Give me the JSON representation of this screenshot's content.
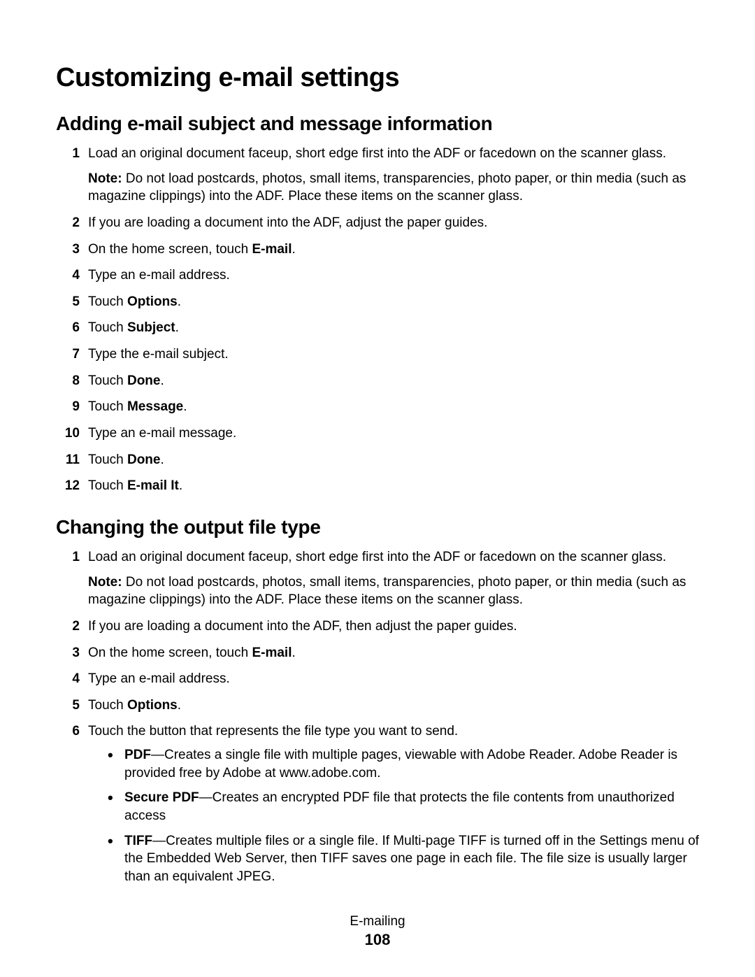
{
  "title": "Customizing e-mail settings",
  "section1": {
    "heading": "Adding e-mail subject and message information",
    "step1": "Load an original document faceup, short edge first into the ADF or facedown on the scanner glass.",
    "note_label": "Note:",
    "note_text": " Do not load postcards, photos, small items, transparencies, photo paper, or thin media (such as magazine clippings) into the ADF. Place these items on the scanner glass.",
    "step2": "If you are loading a document into the ADF, adjust the paper guides.",
    "step3_pre": "On the home screen, touch ",
    "step3_bold": "E-mail",
    "step3_post": ".",
    "step4": "Type an e-mail address.",
    "step5_pre": "Touch ",
    "step5_bold": "Options",
    "step5_post": ".",
    "step6_pre": "Touch ",
    "step6_bold": "Subject",
    "step6_post": ".",
    "step7": "Type the e-mail subject.",
    "step8_pre": "Touch ",
    "step8_bold": "Done",
    "step8_post": ".",
    "step9_pre": "Touch ",
    "step9_bold": "Message",
    "step9_post": ".",
    "step10": "Type an e-mail message.",
    "step11_pre": "Touch ",
    "step11_bold": "Done",
    "step11_post": ".",
    "step12_pre": "Touch ",
    "step12_bold": "E-mail It",
    "step12_post": "."
  },
  "section2": {
    "heading": "Changing the output file type",
    "step1": "Load an original document faceup, short edge first into the ADF or facedown on the scanner glass.",
    "note_label": "Note:",
    "note_text": " Do not load postcards, photos, small items, transparencies, photo paper, or thin media (such as magazine clippings) into the ADF. Place these items on the scanner glass.",
    "step2": "If you are loading a document into the ADF, then adjust the paper guides.",
    "step3_pre": "On the home screen, touch ",
    "step3_bold": "E-mail",
    "step3_post": ".",
    "step4": "Type an e-mail address.",
    "step5_pre": "Touch ",
    "step5_bold": "Options",
    "step5_post": ".",
    "step6": "Touch the button that represents the file type you want to send.",
    "bullet1_bold": "PDF",
    "bullet1_text": "—Creates a single file with multiple pages, viewable with Adobe Reader. Adobe Reader is provided free by Adobe at www.adobe.com.",
    "bullet2_bold": "Secure PDF",
    "bullet2_text": "—Creates an encrypted PDF file that protects the file contents from unauthorized access",
    "bullet3_bold": "TIFF",
    "bullet3_text": "—Creates multiple files or a single file. If Multi-page TIFF is turned off in the Settings menu of the Embedded Web Server, then TIFF saves one page in each file. The file size is usually larger than an equivalent JPEG."
  },
  "footer": {
    "label": "E-mailing",
    "page": "108"
  }
}
